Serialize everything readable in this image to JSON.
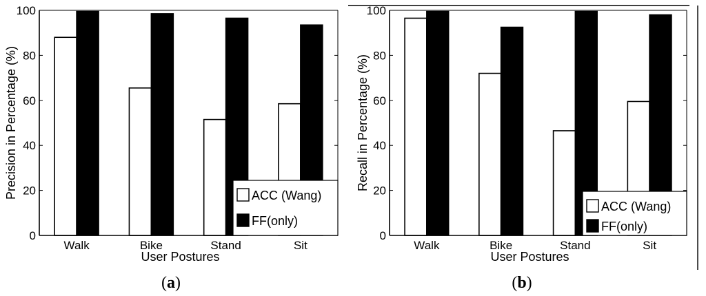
{
  "chart_data": [
    {
      "type": "bar",
      "panel_label": "a",
      "categories": [
        "Walk",
        "Bike",
        "Stand",
        "Sit"
      ],
      "series": [
        {
          "name": "ACC (Wang)",
          "color": "#ffffff",
          "values": [
            88,
            65.5,
            51.5,
            58.5
          ]
        },
        {
          "name": "FF(only)",
          "color": "#000000",
          "values": [
            99.5,
            98.5,
            96.5,
            93.5
          ]
        }
      ],
      "xlabel": "User Postures",
      "ylabel": "Precision in Percentage (%)",
      "ylim": [
        0,
        100
      ],
      "yticks": [
        "0",
        "20",
        "40",
        "60",
        "80",
        "100"
      ],
      "grid": false,
      "legend": "bottom-right"
    },
    {
      "type": "bar",
      "panel_label": "b",
      "categories": [
        "Walk",
        "Bike",
        "Stand",
        "Sit"
      ],
      "series": [
        {
          "name": "ACC (Wang)",
          "color": "#ffffff",
          "values": [
            96.5,
            72,
            46.5,
            59.5
          ]
        },
        {
          "name": "FF(only)",
          "color": "#000000",
          "values": [
            99.5,
            92.5,
            99.5,
            98
          ]
        }
      ],
      "xlabel": "User Postures",
      "ylabel": "Recall in Percentage (%)",
      "ylim": [
        0,
        100
      ],
      "yticks": [
        "0",
        "20",
        "40",
        "60",
        "80",
        "100"
      ],
      "grid": false,
      "legend": "bottom-right"
    }
  ]
}
